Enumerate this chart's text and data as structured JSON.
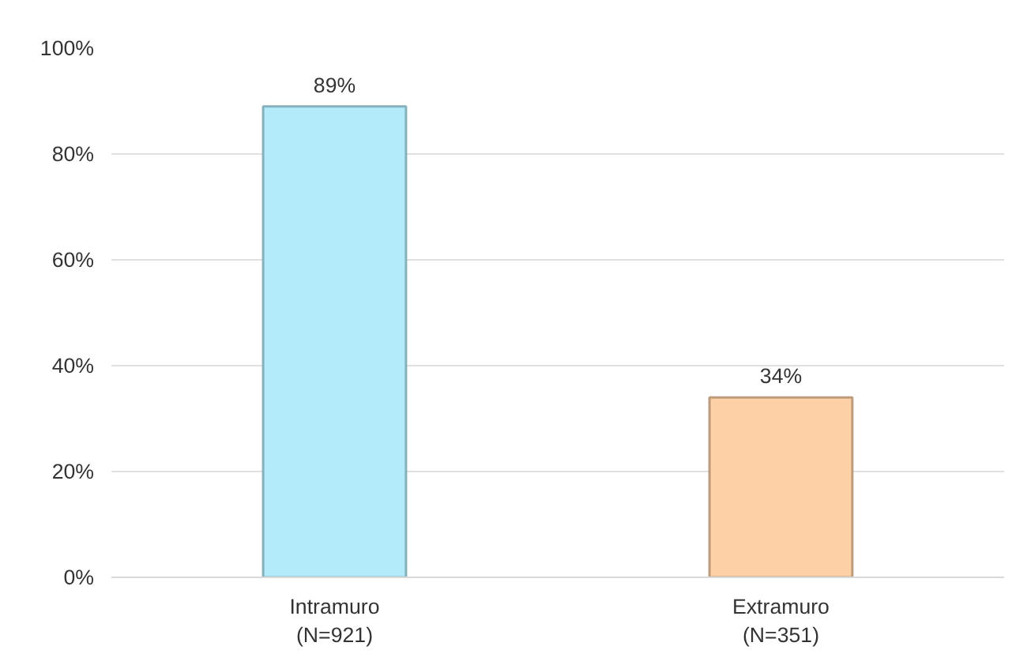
{
  "chart_data": {
    "type": "bar",
    "categories": [
      "Intramuro\n(N=921)",
      "Extramuro\n(N=351)"
    ],
    "values": [
      89,
      34
    ],
    "colors": [
      "#b3ebfb",
      "#fdd0a6"
    ],
    "ylim": [
      0,
      100
    ],
    "yticks": [
      {
        "value": 0,
        "label": "0%"
      },
      {
        "value": 20,
        "label": "20%"
      },
      {
        "value": 40,
        "label": "40%"
      },
      {
        "value": 60,
        "label": "60%"
      },
      {
        "value": 80,
        "label": "80%"
      },
      {
        "value": 100,
        "label": "100%"
      }
    ],
    "value_labels": [
      "89%",
      "34%"
    ],
    "grid": "y"
  }
}
